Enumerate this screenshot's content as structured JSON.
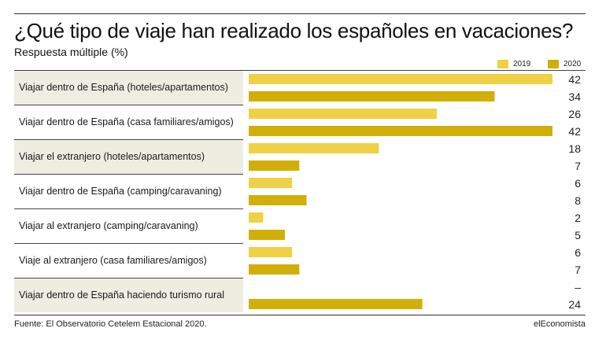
{
  "title": "¿Qué tipo de viaje han realizado los españoles en vacaciones?",
  "subtitle": "Respuesta múltiple (%)",
  "legend": [
    {
      "label": "2019",
      "color": "#efd145"
    },
    {
      "label": "2020",
      "color": "#d1ae08"
    }
  ],
  "chart_data": {
    "type": "bar",
    "orientation": "horizontal",
    "title": "¿Qué tipo de viaje han realizado los españoles en vacaciones?",
    "subtitle": "Respuesta múltiple (%)",
    "categories": [
      "Viajar dentro de España (hoteles/apartamentos)",
      "Viajar dentro de España (casa familiares/amigos)",
      "Viajar el extranjero (hoteles/apartamentos)",
      "Viajar dentro de España (camping/caravaning)",
      "Viajar al extranjero (camping/caravaning)",
      "Viaje al extranjero (casa familiares/amigos)",
      "Viajar dentro de España haciendo turismo rural"
    ],
    "series": [
      {
        "name": "2019",
        "color": "#efd145",
        "values": [
          42,
          26,
          18,
          6,
          2,
          6,
          null
        ],
        "labels": [
          "42",
          "26",
          "18",
          "6",
          "2",
          "6",
          "–"
        ]
      },
      {
        "name": "2020",
        "color": "#d1ae08",
        "values": [
          34,
          42,
          7,
          8,
          5,
          7,
          24
        ],
        "labels": [
          "34",
          "42",
          "7",
          "8",
          "5",
          "7",
          "24"
        ]
      }
    ],
    "xlim": [
      0,
      42
    ],
    "grid": false,
    "legend_position": "top-right"
  },
  "footer": {
    "source": "Fuente: El Observatorio Cetelem Estacional 2020.",
    "brand": "elEconomista"
  }
}
